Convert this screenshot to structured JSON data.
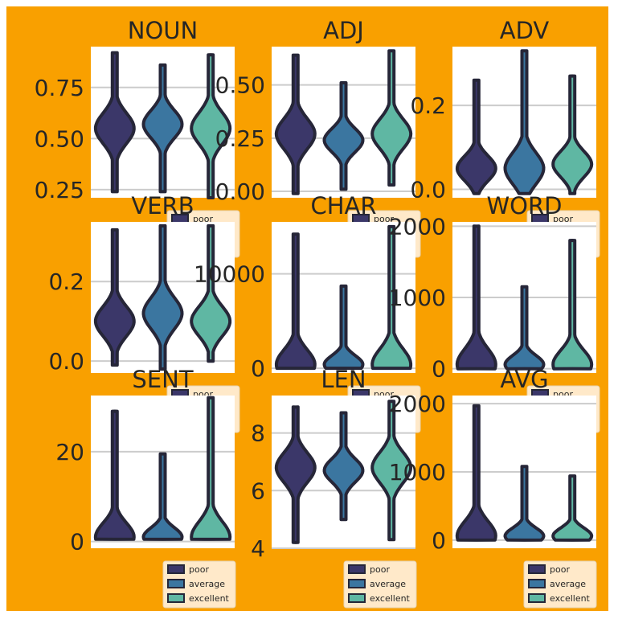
{
  "colors": {
    "figure_background": "#F9A000",
    "axes_background": "#FFFFFF",
    "grid": "#CCCCCC",
    "outline": "#262638",
    "legend_background": "#FFE9C9"
  },
  "legend_entries": [
    "poor",
    "average",
    "excellent"
  ],
  "chart_data": [
    {
      "type": "violin",
      "title": "NOUN",
      "categories": [
        "poor",
        "average",
        "excellent"
      ],
      "yticks": [
        0.25,
        0.5,
        0.75
      ],
      "yticklabels": [
        "0.25",
        "0.50",
        "0.75"
      ],
      "ylim": [
        0.21,
        0.95
      ],
      "series": [
        {
          "name": "poor",
          "color": "#3B3769",
          "min": 0.24,
          "median": 0.55,
          "max": 0.92
        },
        {
          "name": "average",
          "color": "#3B76A0",
          "min": 0.24,
          "median": 0.57,
          "max": 0.86
        },
        {
          "name": "excellent",
          "color": "#5FB7A3",
          "min": 0.21,
          "median": 0.55,
          "max": 0.91
        }
      ],
      "legend_visible": "partial"
    },
    {
      "type": "violin",
      "title": "ADJ",
      "categories": [
        "poor",
        "average",
        "excellent"
      ],
      "yticks": [
        0.0,
        0.25,
        0.5
      ],
      "yticklabels": [
        "0.00",
        "0.25",
        "0.50"
      ],
      "ylim": [
        -0.03,
        0.68
      ],
      "series": [
        {
          "name": "poor",
          "color": "#3B3769",
          "min": -0.01,
          "median": 0.27,
          "max": 0.64
        },
        {
          "name": "average",
          "color": "#3B76A0",
          "min": 0.01,
          "median": 0.24,
          "max": 0.51
        },
        {
          "name": "excellent",
          "color": "#5FB7A3",
          "min": 0.03,
          "median": 0.27,
          "max": 0.66
        }
      ],
      "legend_visible": "partial"
    },
    {
      "type": "violin",
      "title": "ADV",
      "categories": [
        "poor",
        "average",
        "excellent"
      ],
      "yticks": [
        0.0,
        0.2
      ],
      "yticklabels": [
        "0.0",
        "0.2"
      ],
      "ylim": [
        -0.02,
        0.34
      ],
      "series": [
        {
          "name": "poor",
          "color": "#3B3769",
          "min": -0.01,
          "median": 0.05,
          "max": 0.26
        },
        {
          "name": "average",
          "color": "#3B76A0",
          "min": -0.01,
          "median": 0.05,
          "max": 0.33
        },
        {
          "name": "excellent",
          "color": "#5FB7A3",
          "min": -0.01,
          "median": 0.06,
          "max": 0.27
        }
      ],
      "legend_visible": "partial"
    },
    {
      "type": "violin",
      "title": "VERB",
      "categories": [
        "poor",
        "average",
        "excellent"
      ],
      "yticks": [
        0.0,
        0.2
      ],
      "yticklabels": [
        "0.0",
        "0.2"
      ],
      "ylim": [
        -0.03,
        0.35
      ],
      "series": [
        {
          "name": "poor",
          "color": "#3B3769",
          "min": -0.01,
          "median": 0.1,
          "max": 0.33
        },
        {
          "name": "average",
          "color": "#3B76A0",
          "min": -0.02,
          "median": 0.12,
          "max": 0.34
        },
        {
          "name": "excellent",
          "color": "#5FB7A3",
          "min": 0.0,
          "median": 0.1,
          "max": 0.34
        }
      ],
      "legend_visible": "partial"
    },
    {
      "type": "violin",
      "title": "CHAR",
      "categories": [
        "poor",
        "average",
        "excellent"
      ],
      "yticks": [
        0,
        10000
      ],
      "yticklabels": [
        "0",
        "10000"
      ],
      "ylim": [
        -500,
        15500
      ],
      "series": [
        {
          "name": "poor",
          "color": "#3B3769",
          "min": 0,
          "median": 400,
          "max": 14200
        },
        {
          "name": "average",
          "color": "#3B76A0",
          "min": 0,
          "median": 400,
          "max": 8700
        },
        {
          "name": "excellent",
          "color": "#5FB7A3",
          "min": 0,
          "median": 400,
          "max": 15000
        }
      ],
      "legend_visible": "partial"
    },
    {
      "type": "violin",
      "title": "WORD",
      "categories": [
        "poor",
        "average",
        "excellent"
      ],
      "yticks": [
        0,
        1000,
        2000
      ],
      "yticklabels": [
        "0",
        "1000",
        "2000"
      ],
      "ylim": [
        -60,
        2060
      ],
      "series": [
        {
          "name": "poor",
          "color": "#3B3769",
          "min": 0,
          "median": 60,
          "max": 2000
        },
        {
          "name": "average",
          "color": "#3B76A0",
          "min": 0,
          "median": 60,
          "max": 1150
        },
        {
          "name": "excellent",
          "color": "#5FB7A3",
          "min": 0,
          "median": 60,
          "max": 1800
        }
      ],
      "legend_visible": "partial"
    },
    {
      "type": "violin",
      "title": "SENT",
      "categories": [
        "poor",
        "average",
        "excellent"
      ],
      "yticks": [
        0,
        20
      ],
      "yticklabels": [
        "0",
        "20"
      ],
      "ylim": [
        -1.5,
        32.5
      ],
      "series": [
        {
          "name": "poor",
          "color": "#3B3769",
          "min": 0.5,
          "median": 1,
          "max": 29
        },
        {
          "name": "average",
          "color": "#3B76A0",
          "min": 0.5,
          "median": 1,
          "max": 19.5
        },
        {
          "name": "excellent",
          "color": "#5FB7A3",
          "min": 0.5,
          "median": 1,
          "max": 32
        }
      ],
      "legend_visible": "partial"
    },
    {
      "type": "violin",
      "title": "LEN",
      "categories": [
        "poor",
        "average",
        "excellent"
      ],
      "yticks": [
        4,
        6,
        8
      ],
      "yticklabels": [
        "4",
        "6",
        "8"
      ],
      "ylim": [
        4.0,
        9.3
      ],
      "series": [
        {
          "name": "poor",
          "color": "#3B3769",
          "min": 4.2,
          "median": 6.8,
          "max": 8.9
        },
        {
          "name": "average",
          "color": "#3B76A0",
          "min": 5.0,
          "median": 6.7,
          "max": 8.7
        },
        {
          "name": "excellent",
          "color": "#5FB7A3",
          "min": 4.3,
          "median": 6.8,
          "max": 9.1
        }
      ],
      "legend_visible": "full"
    },
    {
      "type": "violin",
      "title": "AVG",
      "categories": [
        "poor",
        "average",
        "excellent"
      ],
      "yticks": [
        0,
        1000,
        2000
      ],
      "yticklabels": [
        "0",
        "1000",
        "2000"
      ],
      "ylim": [
        -120,
        2120
      ],
      "series": [
        {
          "name": "poor",
          "color": "#3B3769",
          "min": 0,
          "median": 60,
          "max": 1970
        },
        {
          "name": "average",
          "color": "#3B76A0",
          "min": 0,
          "median": 60,
          "max": 1080
        },
        {
          "name": "excellent",
          "color": "#5FB7A3",
          "min": 0,
          "median": 60,
          "max": 940
        }
      ],
      "legend_visible": "full"
    }
  ]
}
